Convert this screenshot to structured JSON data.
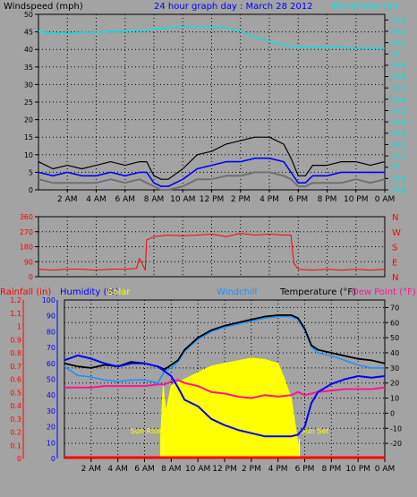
{
  "colors": {
    "background": "#a3a3a3",
    "plot_bg": "#a3a3a3",
    "grid": "#000000",
    "wind_avg": "#0000ff",
    "wind_gust": "#000000",
    "wind_min": "#707070",
    "barometer": "#00e5e5",
    "direction": "#ff0000",
    "temperature": "#000000",
    "dew_point": "#ff1493",
    "humidity": "#0000ff",
    "windchill": "#1e90ff",
    "solar": "#ffff00",
    "rainfall": "#ff0000"
  },
  "chart_data": [
    {
      "type": "line",
      "title": "24 hour graph day : March 28 2012",
      "ylabel": "Windspeed (mph)",
      "y2label": "Barometer (in)",
      "x_ticks": [
        "2 AM",
        "4 AM",
        "6 AM",
        "8 AM",
        "10 AM",
        "12 PM",
        "2 PM",
        "4 PM",
        "6 PM",
        "8 PM",
        "10 PM",
        "0 AM"
      ],
      "y_ticks": [
        "0",
        "5",
        "10",
        "15",
        "20",
        "25",
        "30",
        "35",
        "40",
        "45",
        "50"
      ],
      "ylim": [
        0,
        50
      ],
      "y2_ticks": [
        "28.8",
        "28.9",
        "29",
        "29.1",
        "29.2",
        "29.3",
        "29.4",
        "29.5",
        "29.6",
        "29.7",
        "29.8",
        "29.9",
        "30",
        "30.1",
        "30.2",
        "30.3"
      ],
      "y2lim": [
        28.8,
        30.35
      ],
      "x": [
        0,
        1,
        2,
        3,
        4,
        5,
        6,
        7,
        7.5,
        8,
        8.5,
        9,
        10,
        11,
        12,
        13,
        14,
        15,
        16,
        17,
        17.5,
        18,
        18.5,
        19,
        20,
        21,
        22,
        23,
        24
      ],
      "series": [
        {
          "key": "barometer",
          "axis": "right",
          "values": [
            30.2,
            30.18,
            30.18,
            30.19,
            30.19,
            30.2,
            30.2,
            30.21,
            30.21,
            30.22,
            30.22,
            30.23,
            30.24,
            30.24,
            30.24,
            30.23,
            30.2,
            30.15,
            30.11,
            30.08,
            30.07,
            30.06,
            30.06,
            30.06,
            30.06,
            30.06,
            30.05,
            30.05,
            30.05
          ]
        },
        {
          "key": "wind_gust",
          "axis": "left",
          "values": [
            8,
            6,
            7,
            6,
            7,
            8,
            7,
            8,
            8,
            4,
            3,
            3,
            6,
            10,
            11,
            13,
            14,
            15,
            15,
            13,
            9,
            4,
            4,
            7,
            7,
            8,
            8,
            7,
            8
          ]
        },
        {
          "key": "wind_avg",
          "axis": "left",
          "values": [
            5,
            4,
            5,
            4,
            4,
            5,
            4,
            5,
            5,
            2,
            1,
            1,
            3,
            6,
            7,
            8,
            8,
            9,
            9,
            8,
            5,
            2,
            2,
            4,
            4,
            5,
            5,
            5,
            5
          ]
        },
        {
          "key": "wind_min",
          "axis": "left",
          "values": [
            3,
            2,
            2,
            2,
            2,
            3,
            2,
            3,
            2,
            1,
            0,
            0,
            1,
            3,
            3,
            4,
            4,
            5,
            5,
            4,
            3,
            1,
            1,
            2,
            2,
            2,
            3,
            2,
            3
          ]
        }
      ]
    },
    {
      "type": "scatter",
      "y_ticks": [
        "0",
        "90",
        "180",
        "270",
        "360"
      ],
      "ylim": [
        0,
        360
      ],
      "compass": [
        "N",
        "W",
        "S",
        "E",
        "N"
      ],
      "x": [
        0,
        1,
        2,
        3,
        4,
        5,
        6,
        6.8,
        7,
        7.4,
        7.5,
        8,
        9,
        10,
        11,
        12,
        13,
        14,
        15,
        16,
        17,
        17.5,
        17.7,
        18,
        19,
        20,
        21,
        22,
        23,
        24
      ],
      "values": [
        45,
        40,
        45,
        45,
        40,
        45,
        45,
        50,
        110,
        40,
        220,
        240,
        250,
        245,
        250,
        255,
        240,
        260,
        250,
        255,
        250,
        250,
        80,
        45,
        40,
        45,
        40,
        45,
        40,
        45
      ]
    },
    {
      "type": "line",
      "left_labels": {
        "rainfall": "Rainfall (in)",
        "humidity": "Humidity (%)",
        "solar": "Solar"
      },
      "right_labels": {
        "windchill": "Windchill",
        "temperature": "Temperature (°F)",
        "dew_point": "Dew Point (°F)"
      },
      "rain_ticks": [
        "0",
        "0.1",
        "0.2",
        "0.3",
        "0.4",
        "0.5",
        "0.6",
        "0.7",
        "0.8",
        "0.9",
        "1",
        "1.1",
        "1.2"
      ],
      "rain_lim": [
        0,
        1.2
      ],
      "hum_ticks": [
        "0",
        "10",
        "20",
        "30",
        "40",
        "50",
        "60",
        "70",
        "80",
        "90",
        "100"
      ],
      "hum_lim": [
        0,
        100
      ],
      "temp_ticks": [
        "-20",
        "-10",
        "0",
        "10",
        "20",
        "30",
        "40",
        "50",
        "60",
        "70"
      ],
      "temp_lim": [
        -30,
        75
      ],
      "annotations": [
        "Sun Rise",
        "Sun Set"
      ],
      "x": [
        0,
        1,
        2,
        3,
        4,
        5,
        6,
        7,
        7.5,
        8,
        8.5,
        9,
        10,
        11,
        12,
        13,
        14,
        15,
        16,
        17,
        17.5,
        18,
        18.5,
        19,
        20,
        21,
        22,
        23,
        24
      ],
      "series": [
        {
          "key": "temperature",
          "axis": "right",
          "values": [
            33,
            31,
            30,
            32,
            31,
            34,
            33,
            31,
            29,
            32,
            35,
            42,
            50,
            55,
            58,
            60,
            62,
            64,
            65,
            65,
            63,
            56,
            45,
            42,
            40,
            38,
            36,
            35,
            33
          ]
        },
        {
          "key": "windchill",
          "axis": "right",
          "values": [
            31,
            25,
            24,
            22,
            21,
            22,
            22,
            20,
            28,
            30,
            34,
            41,
            49,
            54,
            57,
            59,
            61,
            63,
            64,
            64,
            62,
            55,
            44,
            40,
            38,
            35,
            32,
            30,
            30
          ]
        },
        {
          "key": "dew_point",
          "axis": "right",
          "values": [
            17,
            17,
            17,
            18,
            18,
            18,
            18,
            19,
            19,
            21,
            22,
            20,
            18,
            14,
            13,
            11,
            10,
            12,
            11,
            12,
            14,
            12,
            13,
            14,
            15,
            16,
            16,
            16,
            17
          ]
        },
        {
          "key": "humidity",
          "axis": "humidity",
          "values": [
            62,
            65,
            63,
            60,
            58,
            60,
            60,
            58,
            55,
            52,
            45,
            37,
            33,
            25,
            21,
            18,
            16,
            14,
            14,
            14,
            15,
            20,
            35,
            42,
            47,
            50,
            52,
            51,
            52
          ]
        }
      ],
      "solar": {
        "x": [
          7.2,
          7.4,
          7.6,
          8,
          9,
          10,
          11,
          12,
          13,
          14,
          15,
          16,
          16.5,
          17,
          17.6
        ],
        "values": [
          0.15,
          0.55,
          0.35,
          0.55,
          0.6,
          0.65,
          0.7,
          0.72,
          0.74,
          0.76,
          0.75,
          0.72,
          0.6,
          0.45,
          0.05
        ]
      },
      "rainfall": {
        "x": [
          0,
          24
        ],
        "values": [
          0,
          0
        ]
      }
    }
  ]
}
